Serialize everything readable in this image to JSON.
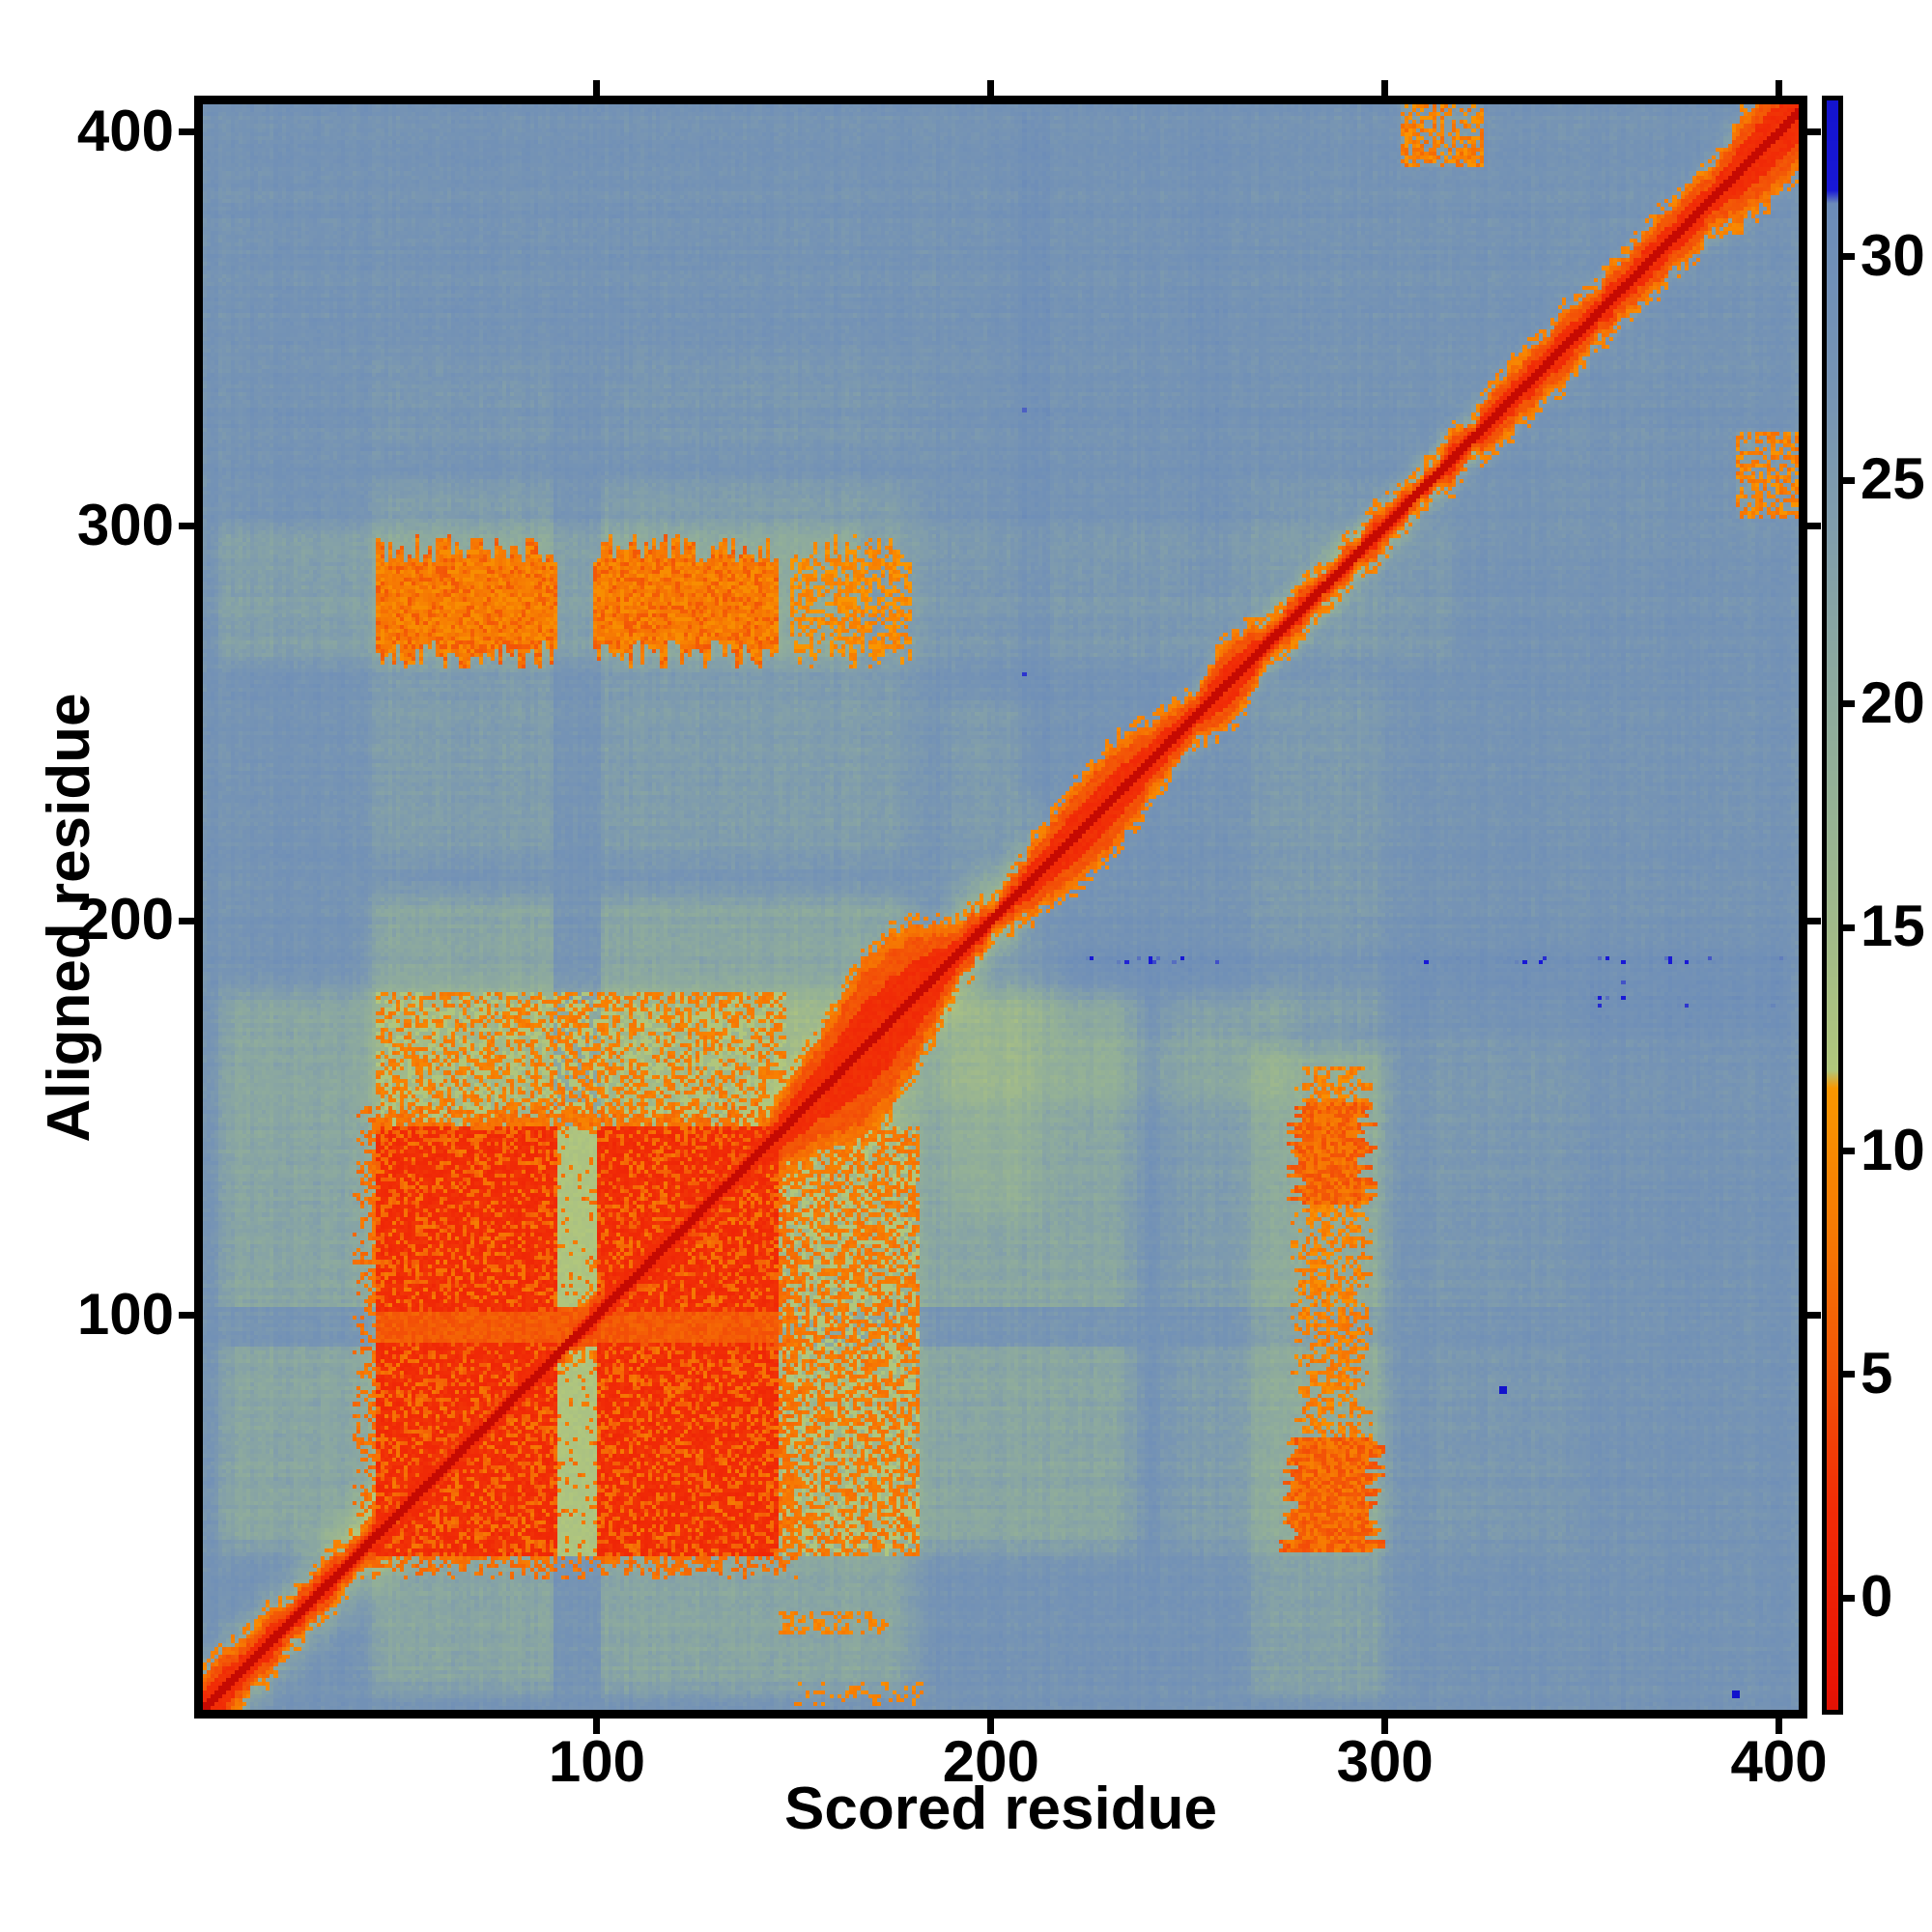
{
  "chart_data": {
    "type": "heatmap",
    "title": "",
    "xlabel": "Scored residue",
    "ylabel": "Aligned residue",
    "x_range": [
      0,
      405
    ],
    "y_range": [
      0,
      407
    ],
    "x_ticks": [
      100,
      200,
      300,
      400
    ],
    "y_ticks": [
      100,
      200,
      300,
      400
    ],
    "grid": false,
    "colorbar": {
      "position": "right",
      "ticks": [
        0,
        5,
        10,
        15,
        20,
        25,
        30
      ],
      "vmin": -2.5,
      "vmax": 33.5
    },
    "colormap_stops": [
      [
        -4,
        [
          198,
          10,
          2
        ]
      ],
      [
        -2,
        [
          233,
          20,
          4
        ]
      ],
      [
        2,
        [
          241,
          44,
          6
        ]
      ],
      [
        5,
        [
          243,
          84,
          7
        ]
      ],
      [
        8,
        [
          246,
          119,
          3
        ]
      ],
      [
        11.4,
        [
          249,
          151,
          0
        ]
      ],
      [
        11.8,
        [
          177,
          199,
          124
        ]
      ],
      [
        15,
        [
          161,
          186,
          138
        ]
      ],
      [
        18,
        [
          148,
          177,
          150
        ]
      ],
      [
        21,
        [
          139,
          168,
          160
        ]
      ],
      [
        24,
        [
          128,
          157,
          172
        ]
      ],
      [
        27,
        [
          118,
          148,
          180
        ]
      ],
      [
        30.5,
        [
          110,
          142,
          184
        ]
      ],
      [
        31.2,
        [
          107,
          139,
          184
        ]
      ],
      [
        31.5,
        [
          24,
          24,
          214
        ]
      ],
      [
        35,
        [
          16,
          16,
          200
        ]
      ]
    ],
    "field_model": {
      "seed": 1234,
      "background": {
        "base": 27.4,
        "row_amp": 0.9,
        "col_amp": 0.9,
        "cell_amp": 1.1
      },
      "washes": [
        {
          "axis": "col",
          "range": [
            38,
            184
          ],
          "fade": 8,
          "zones": [
            [
              0,
              210,
              5.8
            ],
            [
              210,
              315,
              3.0
            ],
            [
              315,
              345,
              1.2
            ]
          ],
          "notch": [
            89,
            100
          ]
        },
        {
          "axis": "row",
          "range": [
            36,
            186
          ],
          "fade": 8,
          "zones": [
            [
              0,
              240,
              5.8
            ],
            [
              240,
              305,
              3.0
            ],
            [
              305,
              350,
              1.5
            ]
          ],
          "notch": [
            92,
            101
          ]
        },
        {
          "axis": "col",
          "range": [
            262,
            303
          ],
          "fade": 6,
          "zones": [
            [
              0,
              170,
              4.5
            ],
            [
              170,
              265,
              2.2
            ],
            [
              265,
              315,
              1.2
            ]
          ]
        },
        {
          "axis": "row",
          "range": [
            262,
            302
          ],
          "fade": 6,
          "zones": [
            [
              0,
              170,
              4.0
            ],
            [
              170,
              320,
              2.0
            ]
          ]
        },
        {
          "axis": "col",
          "range": [
            184,
            215
          ],
          "fade": 8,
          "zones": [
            [
              120,
              260,
              2.5
            ]
          ]
        },
        {
          "axis": "row",
          "range": [
            150,
            185
          ],
          "fade": 8,
          "zones": [
            [
              180,
              280,
              2.5
            ]
          ]
        }
      ],
      "blue_streaks": [
        {
          "axis": "col",
          "range": [
            203,
            217
          ],
          "fade": 5,
          "zones": [
            [
              230,
              407,
              1.8
            ]
          ]
        },
        {
          "axis": "row",
          "range": [
            168,
            196
          ],
          "fade": 6,
          "zones": [
            [
              215,
              405,
              1.8
            ]
          ]
        },
        {
          "axis": "col",
          "range": [
            248,
            262
          ],
          "fade": 5,
          "zones": [
            [
              280,
              407,
              1.2
            ]
          ]
        }
      ],
      "diag_halo": {
        "amp": 14,
        "width_near": 21,
        "near_until": 195,
        "far_from": 215,
        "width_far": 13,
        "corner_start": 370,
        "corner_full": 390,
        "width_corner": 19,
        "floor": 11.8
      },
      "diag_core": {
        "base_hw": 5.2,
        "far_start": 310,
        "far_slope": 0.05,
        "jitter": 1.3,
        "bumps": [
          {
            "c": 2,
            "w": 14,
            "amp": 4
          },
          {
            "c": 166,
            "w": 16,
            "amp": 15
          },
          {
            "c": 178,
            "w": 10,
            "amp": 6
          },
          {
            "c": 221,
            "w": 11,
            "amp": 8.5
          },
          {
            "c": 237,
            "w": 9,
            "amp": 6
          },
          {
            "c": 260,
            "w": 7,
            "amp": 3.5
          },
          {
            "c": 401,
            "w": 10,
            "amp": 5
          }
        ]
      },
      "blocks": {
        "i_ranges": [
          [
            44,
            89
          ],
          [
            100,
            145
          ]
        ],
        "j_ranges": [
          [
            39,
            92
          ],
          [
            101,
            147
          ]
        ],
        "core_red": 1.0,
        "spot_p": 0.22,
        "spot_v": 5.6,
        "spot2_p": 0.1,
        "spot2_v": 7.5,
        "fringe": 6
      },
      "block_gaps": {
        "h_gap": {
          "i": [
            44,
            145
          ],
          "j": [
            92,
            101
          ],
          "v": 5.8
        },
        "v_gap": {
          "i": [
            89,
            100
          ],
          "j": [
            39,
            147
          ],
          "v": 12.6
        }
      },
      "weak_blocks": [
        {
          "i": [
            147,
            181
          ],
          "j": [
            39,
            147
          ],
          "p": 0.5,
          "v": 8.2,
          "v2": 12
        },
        {
          "i": [
            44,
            147
          ],
          "j": [
            147,
            181
          ],
          "p": 0.42,
          "v": 8.6,
          "v2": 12
        }
      ],
      "bands": [
        {
          "orient": "h",
          "j": [
            268,
            294
          ],
          "teeth": 4,
          "segs": [
            {
              "i": [
                44,
                89
              ],
              "strong": true
            },
            {
              "i": [
                99,
                145
              ],
              "strong": true
            },
            {
              "i": [
                149,
                179
              ],
              "strong": false
            }
          ]
        },
        {
          "orient": "v",
          "i": [
            279,
            294
          ],
          "teeth": 3,
          "segs": [
            {
              "j": [
                40,
                68
              ],
              "strong": true,
              "widen": 3
            },
            {
              "j": [
                68,
                128
              ],
              "strong": false
            },
            {
              "j": [
                128,
                153
              ],
              "strong": true,
              "widen": 1
            },
            {
              "j": [
                153,
                162
              ],
              "strong": false
            }
          ]
        }
      ],
      "blobs": [
        {
          "i": [
            304,
            324
          ],
          "j": [
            391,
            406
          ],
          "p": 0.42,
          "v": 8.3,
          "wash": 3
        },
        {
          "i": [
            389,
            404
          ],
          "j": [
            302,
            323
          ],
          "p": 0.4,
          "v": 8.5,
          "wash": 2.5
        }
      ],
      "blips": [
        {
          "i": [
            146,
            173
          ],
          "j": [
            19,
            24
          ],
          "p": 0.5,
          "v": 9.2
        },
        {
          "i": [
            150,
            182
          ],
          "j": [
            1,
            6
          ],
          "p": 0.3,
          "v": 9.5
        }
      ],
      "blue_dots": [
        [
          329,
          80
        ],
        [
          388,
          3
        ]
      ]
    }
  }
}
